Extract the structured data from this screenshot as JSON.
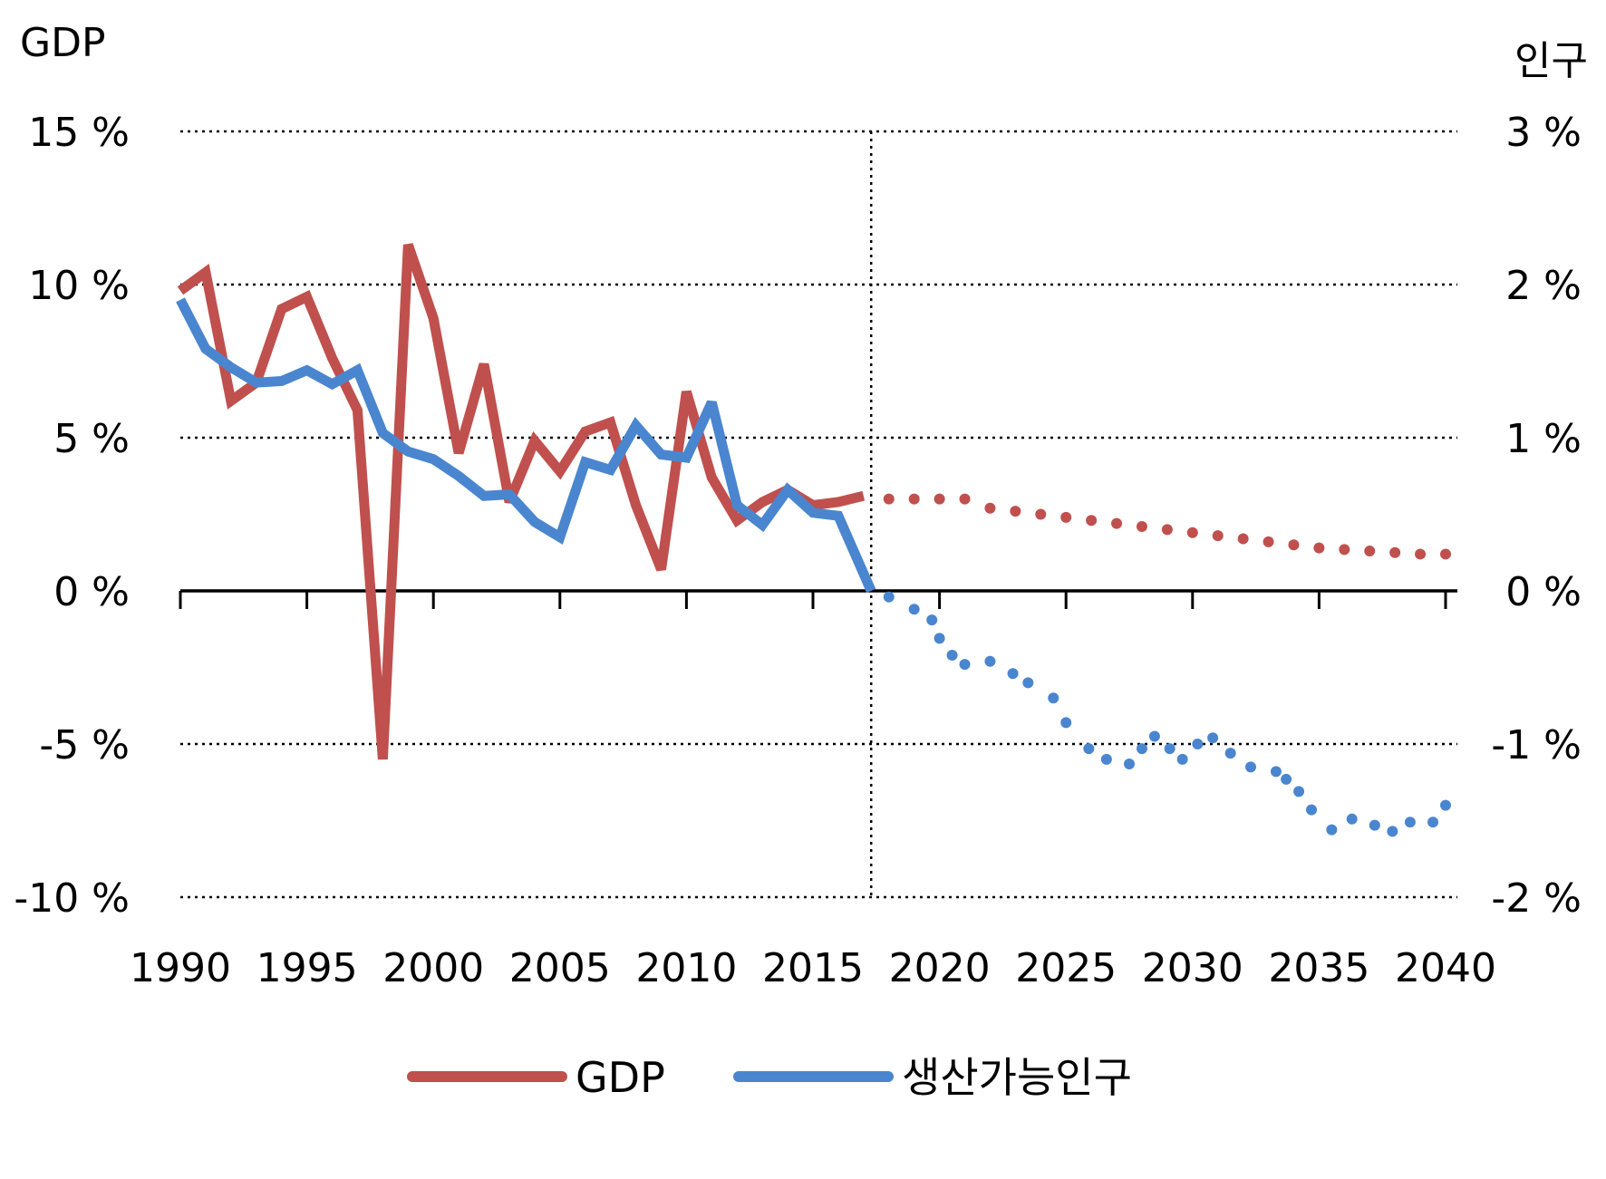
{
  "chart_data": {
    "type": "line",
    "left_axis_title": "GDP",
    "right_axis_title": "인구",
    "left_axis": {
      "ylim": [
        -10,
        15
      ],
      "ticks": [
        15,
        10,
        5,
        0,
        -5,
        -10
      ],
      "tick_labels": [
        "15 %",
        "10 %",
        "5 %",
        "0 %",
        "-5 %",
        "-10 %"
      ]
    },
    "right_axis": {
      "ylim": [
        -2,
        3
      ],
      "ticks": [
        3,
        2,
        1,
        0,
        -1,
        -2
      ],
      "tick_labels": [
        "3 %",
        "2 %",
        "1 %",
        "0 %",
        "-1 %",
        "-2 %"
      ]
    },
    "x_axis": {
      "xlim": [
        1990,
        2040
      ],
      "ticks": [
        1990,
        1995,
        2000,
        2005,
        2010,
        2015,
        2020,
        2025,
        2030,
        2035,
        2040
      ],
      "tick_labels": [
        "1990",
        "1995",
        "2000",
        "2005",
        "2010",
        "2015",
        "2020",
        "2025",
        "2030",
        "2035",
        "2040"
      ]
    },
    "divider_year": 2017.3,
    "grid": "horizontal dotted",
    "legend_position": "bottom",
    "series": [
      {
        "name": "GDP",
        "axis": "left",
        "color": "#c0504d",
        "actual": {
          "x": [
            1990,
            1991,
            1992,
            1993,
            1994,
            1995,
            1996,
            1997,
            1998,
            1999,
            2000,
            2001,
            2002,
            2003,
            2004,
            2005,
            2006,
            2007,
            2008,
            2009,
            2010,
            2011,
            2012,
            2013,
            2014,
            2015,
            2016,
            2017
          ],
          "y": [
            9.8,
            10.4,
            6.2,
            6.8,
            9.2,
            9.6,
            7.6,
            5.9,
            -5.5,
            11.3,
            8.9,
            4.5,
            7.4,
            2.9,
            4.9,
            3.9,
            5.2,
            5.5,
            2.8,
            0.7,
            6.5,
            3.7,
            2.3,
            2.9,
            3.3,
            2.8,
            2.9,
            3.1
          ]
        },
        "projection": {
          "x": [
            2018,
            2019,
            2020,
            2021,
            2022,
            2023,
            2024,
            2025,
            2026,
            2027,
            2028,
            2029,
            2030,
            2031,
            2032,
            2033,
            2034,
            2035,
            2036,
            2037,
            2038,
            2039,
            2040
          ],
          "y": [
            3.0,
            3.0,
            3.0,
            3.0,
            2.7,
            2.6,
            2.5,
            2.4,
            2.3,
            2.2,
            2.1,
            2.0,
            1.9,
            1.8,
            1.7,
            1.6,
            1.5,
            1.4,
            1.35,
            1.3,
            1.25,
            1.2,
            1.2
          ]
        }
      },
      {
        "name": "생산가능인구",
        "axis": "right",
        "color": "#4a86cf",
        "actual": {
          "x": [
            1990,
            1991,
            1992,
            1993,
            1994,
            1995,
            1996,
            1997,
            1998,
            1999,
            2000,
            2001,
            2002,
            2003,
            2004,
            2005,
            2006,
            2007,
            2008,
            2009,
            2010,
            2011,
            2012,
            2013,
            2014,
            2015,
            2016,
            2017.3
          ],
          "y": [
            1.9,
            1.58,
            1.46,
            1.36,
            1.37,
            1.44,
            1.35,
            1.44,
            1.03,
            0.91,
            0.86,
            0.75,
            0.62,
            0.63,
            0.45,
            0.35,
            0.84,
            0.79,
            1.08,
            0.89,
            0.87,
            1.23,
            0.56,
            0.43,
            0.66,
            0.51,
            0.49,
            0.0
          ]
        },
        "projection": {
          "x": [
            2018,
            2019,
            2019.7,
            2020,
            2020.5,
            2021,
            2022,
            2022.9,
            2023.5,
            2024.5,
            2025,
            2025.9,
            2026.6,
            2027.5,
            2028,
            2028.5,
            2029.1,
            2029.6,
            2030.2,
            2030.8,
            2031.5,
            2032.3,
            2033.3,
            2033.7,
            2034.2,
            2034.7,
            2035.5,
            2036.3,
            2037.2,
            2037.9,
            2038.6,
            2039.5,
            2040
          ],
          "y": [
            -0.04,
            -0.12,
            -0.19,
            -0.31,
            -0.42,
            -0.48,
            -0.46,
            -0.54,
            -0.6,
            -0.7,
            -0.86,
            -1.03,
            -1.1,
            -1.13,
            -1.03,
            -0.95,
            -1.03,
            -1.1,
            -1.0,
            -0.96,
            -1.06,
            -1.15,
            -1.18,
            -1.23,
            -1.31,
            -1.43,
            -1.56,
            -1.49,
            -1.53,
            -1.57,
            -1.51,
            -1.51,
            -1.4
          ]
        }
      }
    ]
  }
}
